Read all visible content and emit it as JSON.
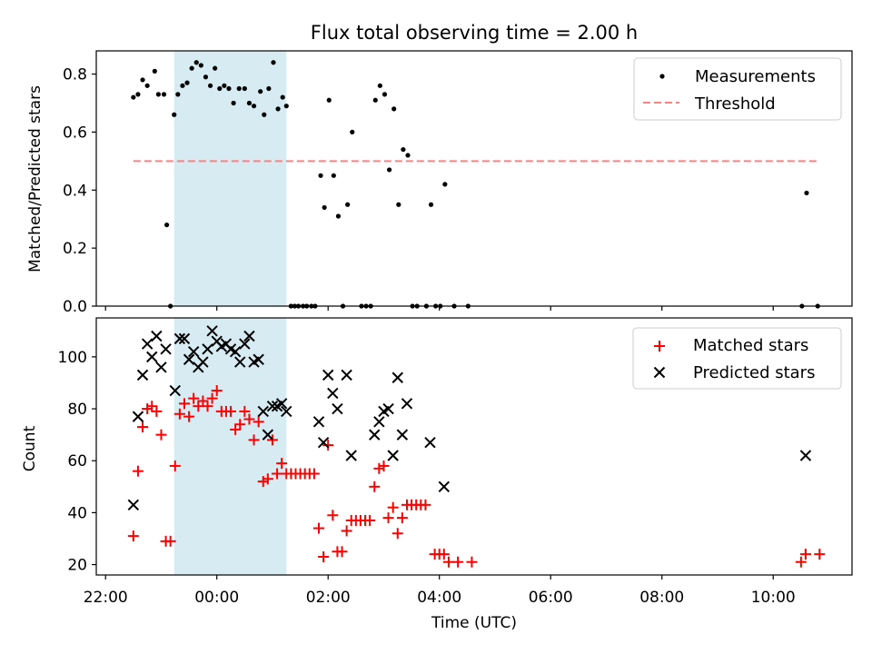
{
  "figure": {
    "title": "Flux total observing time = 2.00 h",
    "xlabel": "Time (UTC)",
    "shade_color": "#add8e6"
  },
  "chart_data": [
    {
      "type": "scatter",
      "panel": "top",
      "ylabel": "Matched/Predicted stars",
      "xlim": [
        "21:50",
        "11:25"
      ],
      "ylim": [
        0,
        0.88
      ],
      "yticks": [
        "0.0",
        "0.2",
        "0.4",
        "0.6",
        "0.8"
      ],
      "ytick_values": [
        0,
        0.2,
        0.4,
        0.6,
        0.8
      ],
      "shaded_interval": [
        "23:14",
        "01:15"
      ],
      "legend_position": "upper right",
      "series": [
        {
          "name": "Measurements",
          "marker": "point",
          "color": "#000000",
          "points": [
            [
              "22:30",
              0.72
            ],
            [
              "22:35",
              0.73
            ],
            [
              "22:40",
              0.78
            ],
            [
              "22:45",
              0.76
            ],
            [
              "22:53",
              0.81
            ],
            [
              "22:57",
              0.73
            ],
            [
              "23:03",
              0.73
            ],
            [
              "23:06",
              0.28
            ],
            [
              "23:10",
              0.0
            ],
            [
              "23:14",
              0.66
            ],
            [
              "23:18",
              0.73
            ],
            [
              "23:23",
              0.76
            ],
            [
              "23:28",
              0.77
            ],
            [
              "23:33",
              0.82
            ],
            [
              "23:38",
              0.84
            ],
            [
              "23:43",
              0.83
            ],
            [
              "23:48",
              0.79
            ],
            [
              "23:53",
              0.76
            ],
            [
              "23:58",
              0.82
            ],
            [
              "00:03",
              0.75
            ],
            [
              "00:08",
              0.76
            ],
            [
              "00:13",
              0.75
            ],
            [
              "00:18",
              0.7
            ],
            [
              "00:24",
              0.75
            ],
            [
              "00:30",
              0.75
            ],
            [
              "00:35",
              0.7
            ],
            [
              "00:40",
              0.69
            ],
            [
              "00:47",
              0.74
            ],
            [
              "00:51",
              0.66
            ],
            [
              "00:56",
              0.75
            ],
            [
              "01:01",
              0.84
            ],
            [
              "01:06",
              0.68
            ],
            [
              "01:11",
              0.72
            ],
            [
              "01:15",
              0.69
            ],
            [
              "01:20",
              0.0
            ],
            [
              "01:24",
              0.0
            ],
            [
              "01:28",
              0.0
            ],
            [
              "01:33",
              0.0
            ],
            [
              "01:37",
              0.0
            ],
            [
              "01:42",
              0.0
            ],
            [
              "01:46",
              0.0
            ],
            [
              "01:52",
              0.45
            ],
            [
              "01:56",
              0.34
            ],
            [
              "02:01",
              0.71
            ],
            [
              "02:06",
              0.45
            ],
            [
              "02:11",
              0.31
            ],
            [
              "02:16",
              0.0
            ],
            [
              "02:21",
              0.35
            ],
            [
              "02:26",
              0.6
            ],
            [
              "02:36",
              0.0
            ],
            [
              "02:41",
              0.0
            ],
            [
              "02:46",
              0.0
            ],
            [
              "02:51",
              0.71
            ],
            [
              "02:56",
              0.76
            ],
            [
              "03:01",
              0.73
            ],
            [
              "03:06",
              0.47
            ],
            [
              "03:11",
              0.68
            ],
            [
              "03:16",
              0.35
            ],
            [
              "03:21",
              0.54
            ],
            [
              "03:26",
              0.52
            ],
            [
              "03:31",
              0.0
            ],
            [
              "03:36",
              0.0
            ],
            [
              "03:46",
              0.0
            ],
            [
              "03:51",
              0.35
            ],
            [
              "03:56",
              0.0
            ],
            [
              "04:01",
              0.0
            ],
            [
              "04:06",
              0.42
            ],
            [
              "04:16",
              0.0
            ],
            [
              "04:31",
              0.0
            ],
            [
              "10:31",
              0.0
            ],
            [
              "10:36",
              0.39
            ],
            [
              "10:48",
              0.0
            ]
          ]
        },
        {
          "name": "Threshold",
          "marker": "dashed-line",
          "color": "#ff8080",
          "x": [
            "22:30",
            "10:50"
          ],
          "y": [
            0.5,
            0.5
          ]
        }
      ]
    },
    {
      "type": "scatter",
      "panel": "bottom",
      "ylabel": "Count",
      "xlim": [
        "21:50",
        "11:25"
      ],
      "ylim": [
        16,
        115
      ],
      "yticks": [
        "20",
        "40",
        "60",
        "80",
        "100"
      ],
      "ytick_values": [
        20,
        40,
        60,
        80,
        100
      ],
      "xticks": [
        "22:00",
        "00:00",
        "02:00",
        "04:00",
        "06:00",
        "08:00",
        "10:00"
      ],
      "shaded_interval": [
        "23:14",
        "01:15"
      ],
      "legend_position": "upper right",
      "series": [
        {
          "name": "Matched stars",
          "marker": "plus",
          "color": "#ff0000",
          "points": [
            [
              "22:30",
              31
            ],
            [
              "22:35",
              56
            ],
            [
              "22:40",
              73
            ],
            [
              "22:45",
              80
            ],
            [
              "22:50",
              81
            ],
            [
              "22:55",
              79
            ],
            [
              "23:00",
              70
            ],
            [
              "23:05",
              29
            ],
            [
              "23:10",
              29
            ],
            [
              "23:15",
              58
            ],
            [
              "23:20",
              78
            ],
            [
              "23:25",
              82
            ],
            [
              "23:30",
              77
            ],
            [
              "23:35",
              84
            ],
            [
              "23:40",
              81
            ],
            [
              "23:45",
              83
            ],
            [
              "23:50",
              81
            ],
            [
              "23:55",
              84
            ],
            [
              "00:00",
              87
            ],
            [
              "00:05",
              79
            ],
            [
              "00:10",
              79
            ],
            [
              "00:15",
              79
            ],
            [
              "00:20",
              72
            ],
            [
              "00:25",
              74
            ],
            [
              "00:30",
              79
            ],
            [
              "00:35",
              76
            ],
            [
              "00:40",
              68
            ],
            [
              "00:45",
              75
            ],
            [
              "00:50",
              52
            ],
            [
              "00:55",
              53
            ],
            [
              "01:00",
              68
            ],
            [
              "01:05",
              55
            ],
            [
              "01:10",
              59
            ],
            [
              "01:15",
              55
            ],
            [
              "01:20",
              55
            ],
            [
              "01:25",
              55
            ],
            [
              "01:30",
              55
            ],
            [
              "01:35",
              55
            ],
            [
              "01:40",
              55
            ],
            [
              "01:45",
              55
            ],
            [
              "01:50",
              34
            ],
            [
              "01:55",
              23
            ],
            [
              "02:00",
              66
            ],
            [
              "02:05",
              39
            ],
            [
              "02:10",
              25
            ],
            [
              "02:15",
              25
            ],
            [
              "02:20",
              33
            ],
            [
              "02:25",
              37
            ],
            [
              "02:30",
              37
            ],
            [
              "02:35",
              37
            ],
            [
              "02:40",
              37
            ],
            [
              "02:45",
              37
            ],
            [
              "02:50",
              50
            ],
            [
              "02:55",
              57
            ],
            [
              "03:00",
              58
            ],
            [
              "03:05",
              38
            ],
            [
              "03:10",
              42
            ],
            [
              "03:15",
              32
            ],
            [
              "03:20",
              38
            ],
            [
              "03:25",
              43
            ],
            [
              "03:30",
              43
            ],
            [
              "03:35",
              43
            ],
            [
              "03:40",
              43
            ],
            [
              "03:45",
              43
            ],
            [
              "03:55",
              24
            ],
            [
              "04:00",
              24
            ],
            [
              "04:05",
              24
            ],
            [
              "04:10",
              21
            ],
            [
              "04:20",
              21
            ],
            [
              "04:35",
              21
            ],
            [
              "10:30",
              21
            ],
            [
              "10:35",
              24
            ],
            [
              "10:50",
              24
            ]
          ]
        },
        {
          "name": "Predicted stars",
          "marker": "x",
          "color": "#000000",
          "points": [
            [
              "22:30",
              43
            ],
            [
              "22:35",
              77
            ],
            [
              "22:40",
              93
            ],
            [
              "22:45",
              105
            ],
            [
              "22:50",
              100
            ],
            [
              "22:55",
              108
            ],
            [
              "23:00",
              96
            ],
            [
              "23:05",
              103
            ],
            [
              "23:15",
              87
            ],
            [
              "23:20",
              107
            ],
            [
              "23:25",
              107
            ],
            [
              "23:30",
              99
            ],
            [
              "23:35",
              102
            ],
            [
              "23:40",
              96
            ],
            [
              "23:45",
              98
            ],
            [
              "23:50",
              103
            ],
            [
              "23:55",
              110
            ],
            [
              "00:00",
              106
            ],
            [
              "00:05",
              104
            ],
            [
              "00:10",
              105
            ],
            [
              "00:15",
              103
            ],
            [
              "00:20",
              102
            ],
            [
              "00:25",
              98
            ],
            [
              "00:30",
              105
            ],
            [
              "00:35",
              108
            ],
            [
              "00:40",
              98
            ],
            [
              "00:45",
              99
            ],
            [
              "00:50",
              79
            ],
            [
              "00:55",
              70
            ],
            [
              "01:00",
              81
            ],
            [
              "01:05",
              81
            ],
            [
              "01:10",
              82
            ],
            [
              "01:15",
              79
            ],
            [
              "01:50",
              75
            ],
            [
              "01:55",
              67
            ],
            [
              "02:00",
              93
            ],
            [
              "02:05",
              86
            ],
            [
              "02:10",
              80
            ],
            [
              "02:20",
              93
            ],
            [
              "02:25",
              62
            ],
            [
              "02:50",
              70
            ],
            [
              "02:55",
              75
            ],
            [
              "03:00",
              79
            ],
            [
              "03:05",
              80
            ],
            [
              "03:10",
              62
            ],
            [
              "03:15",
              92
            ],
            [
              "03:20",
              70
            ],
            [
              "03:25",
              82
            ],
            [
              "03:50",
              67
            ],
            [
              "04:05",
              50
            ],
            [
              "10:35",
              62
            ]
          ]
        }
      ]
    }
  ]
}
